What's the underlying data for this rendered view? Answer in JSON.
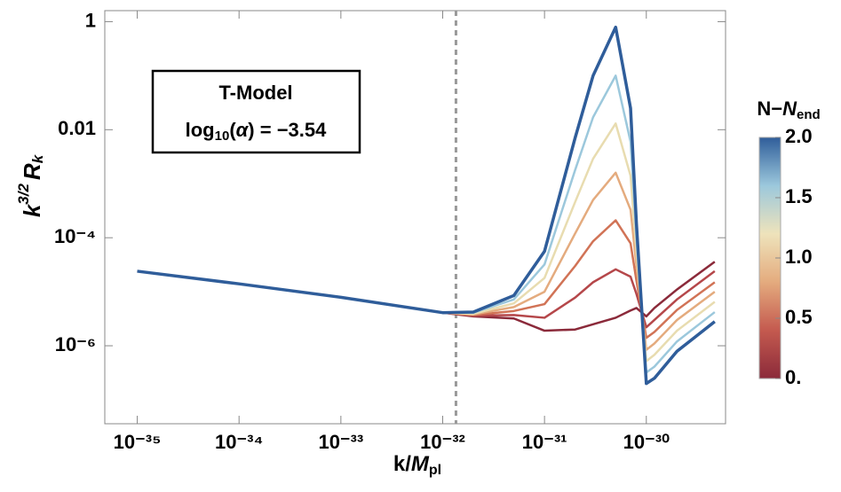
{
  "chart_data": {
    "type": "line",
    "xlabel": [
      "k/",
      "M",
      "pl"
    ],
    "ylabel": [
      "k",
      "3/2",
      "R",
      "k"
    ],
    "annotation": {
      "title": "T-Model",
      "text": [
        "log",
        "10",
        "(",
        "α",
        ") = −3.54"
      ]
    },
    "colorbar": {
      "title": [
        "N−",
        "N",
        "end"
      ],
      "lim": [
        0,
        2
      ],
      "ticks": [
        {
          "value": 0,
          "label": "0."
        },
        0.5,
        {
          "value": 1,
          "label": "1.0"
        },
        1.5,
        {
          "value": 2,
          "label": "2.0"
        }
      ],
      "colors": [
        "#8b2a3a",
        "#c45a4f",
        "#e4ab7e",
        "#eee3bb",
        "#9cc8dc",
        "#2f5d9a"
      ]
    },
    "xscale": "log",
    "yscale": "log",
    "xlim": [
      4.8e-36,
      6e-30
    ],
    "ylim": [
      1.6,
      3.6e-08
    ],
    "xticks": [
      {
        "value": 1e-35,
        "label": "10⁻³⁵"
      },
      {
        "value": 1e-34,
        "label": "10⁻³⁴"
      },
      {
        "value": 1e-33,
        "label": "10⁻³³"
      },
      {
        "value": 1e-32,
        "label": "10⁻³²"
      },
      {
        "value": 1e-31,
        "label": "10⁻³¹"
      },
      {
        "value": 1e-30,
        "label": "10⁻³⁰"
      }
    ],
    "yticks": [
      1,
      0.01,
      {
        "value": 0.0001,
        "label": "10⁻⁴"
      },
      {
        "value": 1e-06,
        "label": "10⁻⁶"
      }
    ],
    "vline": 1.35e-32,
    "x": [
      1e-35,
      1e-34,
      1e-33,
      1e-32,
      2e-32,
      5e-32,
      1e-31,
      2e-31,
      3e-31,
      5e-31,
      7e-31,
      8e-31,
      1e-30,
      1.2e-30,
      2e-30,
      4.7e-30
    ],
    "series": [
      {
        "color": "#8b2a3a",
        "values": [
          2.4e-05,
          1.4e-05,
          7.9e-06,
          4.1e-06,
          3.5e-06,
          3.2e-06,
          1.9e-06,
          2e-06,
          2.5e-06,
          3.3e-06,
          4.5e-06,
          5e-06,
          3.5e-06,
          5e-06,
          1.1e-05,
          3.6e-05
        ]
      },
      {
        "color": "#b5474a",
        "values": [
          2.4e-05,
          1.4e-05,
          7.9e-06,
          4.1e-06,
          3.6e-06,
          3.7e-06,
          3.3e-06,
          7.8e-06,
          1.5e-05,
          2.6e-05,
          1.9e-05,
          9.1e-06,
          2.2e-06,
          3e-06,
          7.2e-06,
          2.4e-05
        ]
      },
      {
        "color": "#d17356",
        "values": [
          2.4e-05,
          1.4e-05,
          7.9e-06,
          4.1e-06,
          3.7e-06,
          4.4e-06,
          5.9e-06,
          3e-05,
          8.6e-05,
          0.00021,
          7.9e-05,
          1.6e-05,
          1.4e-06,
          1.8e-06,
          4.6e-06,
          1.5e-05
        ]
      },
      {
        "color": "#e4ab7e",
        "values": [
          2.4e-05,
          1.4e-05,
          7.9e-06,
          4.1e-06,
          3.8e-06,
          5.2e-06,
          1e-05,
          0.00012,
          0.0005,
          0.0016,
          0.00033,
          3e-05,
          8.4e-07,
          1.1e-06,
          3e-06,
          1e-05
        ]
      },
      {
        "color": "#e8dcb0",
        "values": [
          2.4e-05,
          1.4e-05,
          7.9e-06,
          4.1e-06,
          3.9e-06,
          6.1e-06,
          1.8e-05,
          0.00046,
          0.0029,
          0.013,
          0.0014,
          5.4e-05,
          5.2e-07,
          6.8e-07,
          1.9e-06,
          6.5e-06
        ]
      },
      {
        "color": "#9cc8dc",
        "values": [
          2.4e-05,
          1.4e-05,
          7.9e-06,
          4.1e-06,
          4.1e-06,
          7.2e-06,
          3.2e-05,
          0.0018,
          0.017,
          0.1,
          0.006,
          9.8e-05,
          3.2e-07,
          4.1e-07,
          1.2e-06,
          4.2e-06
        ]
      },
      {
        "color": "#2f5d9a",
        "values": [
          2.4e-05,
          1.4e-05,
          7.9e-06,
          4.1e-06,
          4.2e-06,
          8.5e-06,
          5.6e-05,
          0.0071,
          0.1,
          0.79,
          0.025,
          0.00018,
          2e-07,
          2.5e-07,
          7.9e-07,
          2.8e-06
        ]
      }
    ]
  }
}
